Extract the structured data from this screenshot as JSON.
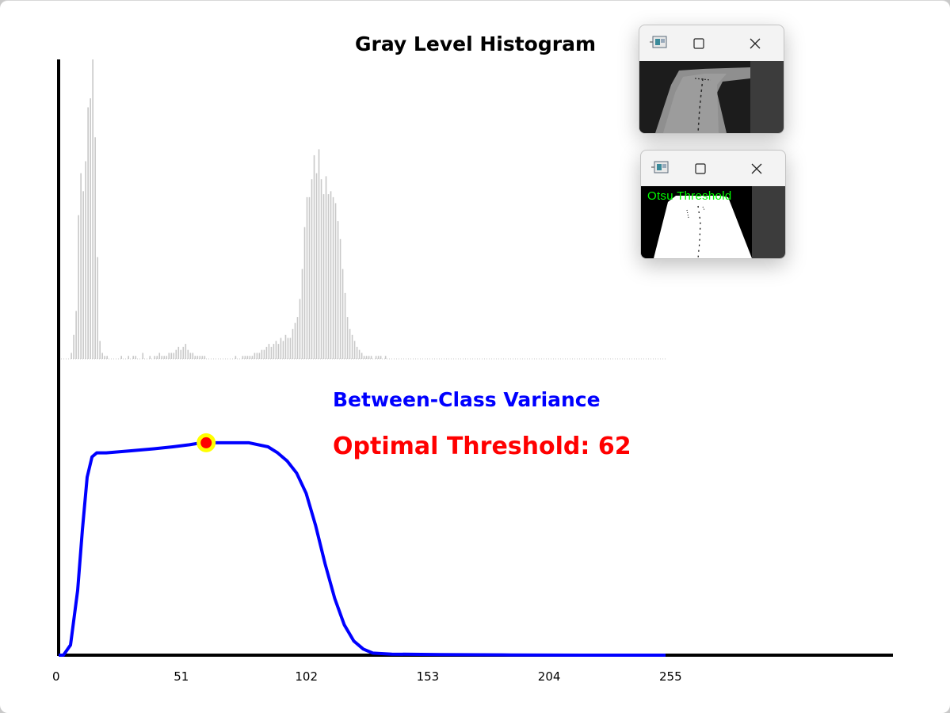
{
  "window": {
    "background": "#ffffff"
  },
  "chart_data": {
    "type": "histogram+line",
    "title": "Gray Level Histogram",
    "x_ticks": [
      "0",
      "51",
      "102",
      "153",
      "204",
      "255"
    ],
    "xlim": [
      0,
      255
    ],
    "histogram": {
      "color": "#c8c8c8",
      "note": "relative bar heights (0-1) per gray level 0-255",
      "values": [
        0,
        0,
        0,
        0,
        0,
        0.02,
        0.08,
        0.16,
        0.48,
        0.62,
        0.56,
        0.66,
        0.84,
        0.87,
        1.0,
        0.74,
        0.34,
        0.06,
        0.02,
        0.01,
        0.01,
        0,
        0,
        0,
        0,
        0,
        0.01,
        0,
        0,
        0.01,
        0,
        0.01,
        0.01,
        0,
        0,
        0.02,
        0,
        0,
        0.01,
        0,
        0.01,
        0.01,
        0.02,
        0.01,
        0.01,
        0.01,
        0.02,
        0.02,
        0.02,
        0.03,
        0.04,
        0.03,
        0.04,
        0.05,
        0.03,
        0.02,
        0.02,
        0.01,
        0.01,
        0.01,
        0.01,
        0.01,
        0,
        0,
        0,
        0,
        0,
        0,
        0,
        0,
        0,
        0,
        0,
        0,
        0.01,
        0,
        0,
        0.01,
        0.01,
        0.01,
        0.01,
        0.01,
        0.02,
        0.02,
        0.02,
        0.03,
        0.03,
        0.04,
        0.05,
        0.04,
        0.05,
        0.06,
        0.05,
        0.07,
        0.06,
        0.08,
        0.07,
        0.07,
        0.1,
        0.12,
        0.14,
        0.2,
        0.3,
        0.44,
        0.54,
        0.54,
        0.6,
        0.68,
        0.62,
        0.7,
        0.6,
        0.55,
        0.61,
        0.55,
        0.56,
        0.54,
        0.52,
        0.46,
        0.4,
        0.3,
        0.22,
        0.14,
        0.1,
        0.08,
        0.06,
        0.04,
        0.03,
        0.02,
        0.01,
        0.01,
        0.01,
        0.01,
        0,
        0.01,
        0.01,
        0.01,
        0,
        0.01,
        0,
        0,
        0,
        0,
        0,
        0,
        0,
        0,
        0,
        0,
        0,
        0,
        0,
        0,
        0,
        0,
        0,
        0,
        0,
        0,
        0,
        0,
        0,
        0,
        0,
        0,
        0,
        0,
        0,
        0,
        0,
        0,
        0,
        0,
        0,
        0,
        0,
        0,
        0,
        0,
        0,
        0,
        0,
        0,
        0,
        0,
        0,
        0,
        0,
        0,
        0,
        0,
        0,
        0,
        0,
        0,
        0,
        0,
        0,
        0,
        0,
        0,
        0,
        0,
        0,
        0,
        0,
        0,
        0,
        0,
        0,
        0,
        0,
        0,
        0,
        0,
        0,
        0,
        0,
        0,
        0,
        0,
        0,
        0,
        0,
        0,
        0,
        0,
        0,
        0,
        0,
        0,
        0,
        0,
        0,
        0,
        0,
        0,
        0,
        0,
        0,
        0,
        0,
        0,
        0,
        0,
        0,
        0,
        0,
        0,
        0,
        0,
        0,
        0,
        0,
        0,
        0,
        0,
        0,
        0,
        0,
        0,
        0,
        0,
        0,
        0,
        0,
        0,
        0,
        0,
        0,
        0,
        0,
        0,
        0,
        0,
        0,
        0
      ]
    },
    "variance": {
      "label": "Between-Class Variance",
      "color": "#0000ff",
      "x": [
        0,
        2,
        5,
        8,
        10,
        12,
        14,
        16,
        20,
        30,
        40,
        48,
        55,
        60,
        62,
        65,
        70,
        80,
        88,
        92,
        96,
        100,
        104,
        108,
        112,
        116,
        120,
        124,
        128,
        132,
        140,
        160,
        190,
        220,
        255
      ],
      "y": [
        0,
        0.0,
        0.05,
        0.32,
        0.62,
        0.88,
        0.98,
        1.0,
        1.0,
        1.01,
        1.02,
        1.03,
        1.04,
        1.05,
        1.05,
        1.05,
        1.05,
        1.05,
        1.03,
        1.0,
        0.96,
        0.9,
        0.8,
        0.64,
        0.45,
        0.28,
        0.15,
        0.07,
        0.03,
        0.01,
        0.005,
        0.003,
        0.001,
        0.0,
        0.0
      ],
      "ylim": [
        0,
        1.12
      ]
    },
    "optimal_threshold": {
      "label": "Optimal Threshold: 62",
      "value": 62,
      "color": "#ff0000",
      "halo_color": "#ffff00"
    }
  },
  "windows": [
    {
      "name": "grayscale-preview",
      "content": "grayscale road image"
    },
    {
      "name": "otsu-preview",
      "overlay_text": "Otsu Threshold",
      "overlay_color": "#00ff00"
    }
  ]
}
